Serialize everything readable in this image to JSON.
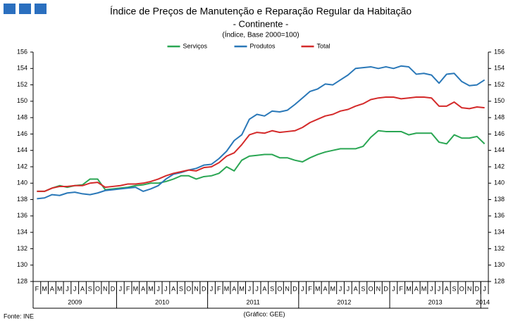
{
  "chart_data": {
    "type": "line",
    "title": "Índice de Preços de Manutenção e Reparação Regular da Habitação",
    "subtitle": "- Continente -",
    "unit_label": "(Índice, Base 2000=100)",
    "source": "Fonte: INE",
    "credit": "(Gráfico: GEE)",
    "category_groups": [
      {
        "label": "2009",
        "categories": [
          "F",
          "M",
          "A",
          "M",
          "J",
          "J",
          "A",
          "S",
          "O",
          "N",
          "D"
        ]
      },
      {
        "label": "2010",
        "categories": [
          "J",
          "F",
          "M",
          "A",
          "M",
          "J",
          "J",
          "A",
          "S",
          "O",
          "N",
          "D"
        ]
      },
      {
        "label": "2011",
        "categories": [
          "J",
          "F",
          "M",
          "A",
          "M",
          "J",
          "J",
          "A",
          "S",
          "O",
          "N",
          "D"
        ]
      },
      {
        "label": "2012",
        "categories": [
          "J",
          "F",
          "M",
          "A",
          "M",
          "J",
          "J",
          "A",
          "S",
          "O",
          "N",
          "D"
        ]
      },
      {
        "label": "2013",
        "categories": [
          "J",
          "F",
          "M",
          "A",
          "M",
          "J",
          "J",
          "A",
          "S",
          "O",
          "N",
          "D"
        ]
      },
      {
        "label": "2014",
        "categories": [
          "J"
        ]
      }
    ],
    "series": [
      {
        "name": "Serviços",
        "color": "#2aa653",
        "values": [
          139.0,
          139.0,
          139.4,
          139.7,
          139.5,
          139.7,
          139.8,
          140.5,
          140.5,
          139.2,
          139.3,
          139.4,
          139.5,
          139.7,
          139.8,
          140.0,
          140.0,
          140.2,
          140.5,
          140.9,
          140.9,
          140.5,
          140.8,
          140.9,
          141.2,
          142.0,
          141.5,
          142.8,
          143.3,
          143.4,
          143.5,
          143.5,
          143.1,
          143.1,
          142.8,
          142.6,
          143.1,
          143.5,
          143.8,
          144.0,
          144.2,
          144.2,
          144.2,
          144.5,
          145.6,
          146.4,
          146.3,
          146.3,
          146.3,
          145.9,
          146.1,
          146.1,
          146.1,
          145.0,
          144.8,
          145.9,
          145.5,
          145.5,
          145.7,
          144.8
        ]
      },
      {
        "name": "Produtos",
        "color": "#2a78b8",
        "values": [
          138.1,
          138.2,
          138.6,
          138.5,
          138.8,
          138.9,
          138.7,
          138.6,
          138.8,
          139.1,
          139.2,
          139.3,
          139.4,
          139.5,
          139.0,
          139.3,
          139.7,
          140.5,
          141.1,
          141.3,
          141.6,
          141.8,
          142.2,
          142.3,
          143.0,
          143.9,
          145.2,
          145.9,
          147.8,
          148.4,
          148.2,
          148.8,
          148.7,
          148.9,
          149.6,
          150.4,
          151.2,
          151.5,
          152.1,
          152.0,
          152.6,
          153.2,
          154.0,
          154.1,
          154.2,
          154.0,
          154.2,
          154.0,
          154.3,
          154.2,
          153.3,
          153.4,
          153.2,
          152.2,
          153.3,
          153.4,
          152.4,
          151.9,
          152.0,
          152.6
        ]
      },
      {
        "name": "Total",
        "color": "#d42a2a",
        "values": [
          139.0,
          139.0,
          139.4,
          139.6,
          139.6,
          139.7,
          139.7,
          140.0,
          140.1,
          139.5,
          139.6,
          139.7,
          139.9,
          139.9,
          140.0,
          140.2,
          140.5,
          140.9,
          141.2,
          141.4,
          141.6,
          141.5,
          141.9,
          142.0,
          142.5,
          143.3,
          143.7,
          144.7,
          145.9,
          146.2,
          146.1,
          146.4,
          146.2,
          146.3,
          146.4,
          146.8,
          147.4,
          147.8,
          148.2,
          148.4,
          148.8,
          149.0,
          149.4,
          149.7,
          150.2,
          150.4,
          150.5,
          150.5,
          150.3,
          150.4,
          150.5,
          150.5,
          150.4,
          149.4,
          149.4,
          149.9,
          149.2,
          149.1,
          149.3,
          149.2
        ]
      }
    ],
    "ylim": [
      128,
      156
    ],
    "yticks": [
      128,
      130,
      132,
      134,
      136,
      138,
      140,
      142,
      144,
      146,
      148,
      150,
      152,
      154,
      156
    ],
    "grid": false,
    "legend": "top"
  }
}
